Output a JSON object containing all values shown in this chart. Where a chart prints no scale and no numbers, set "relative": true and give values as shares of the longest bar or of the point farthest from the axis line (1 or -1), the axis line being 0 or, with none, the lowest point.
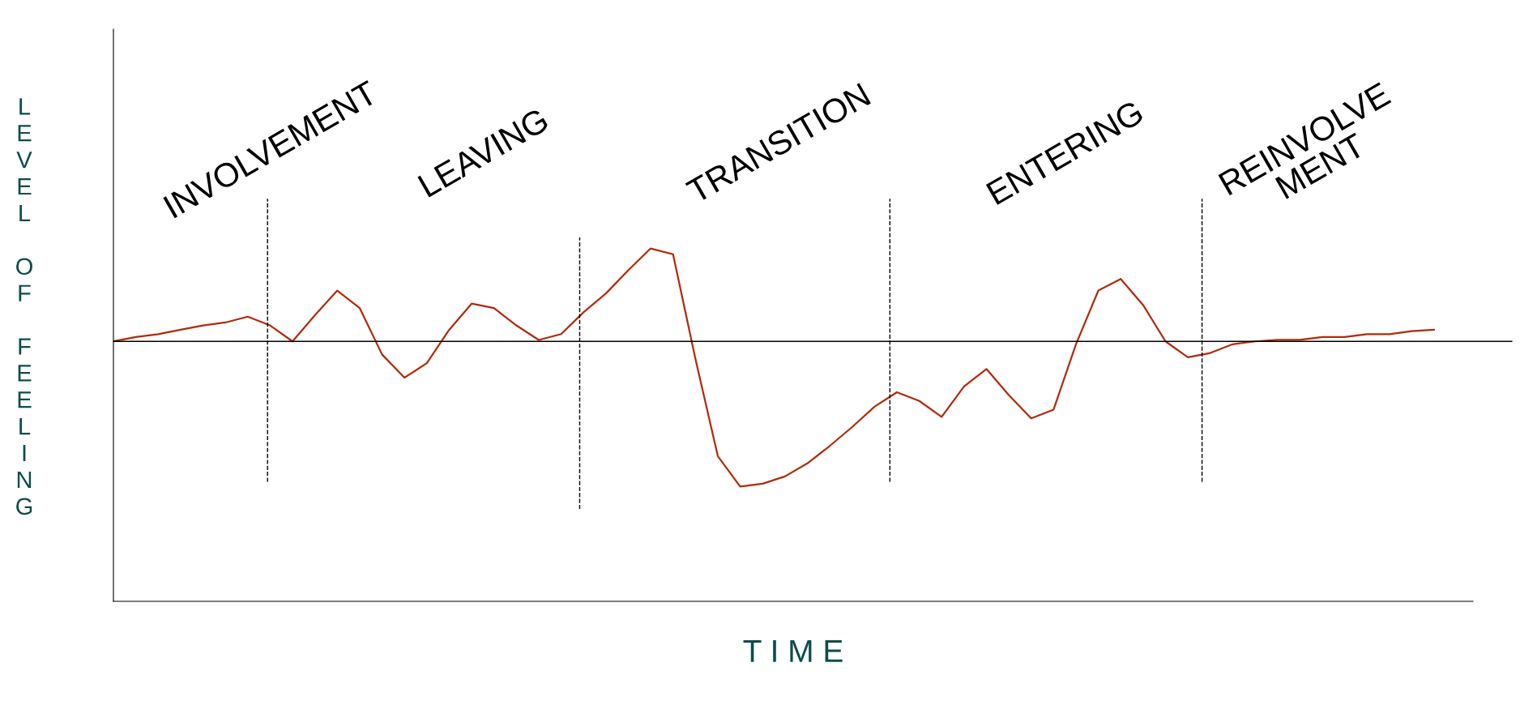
{
  "chart_data": {
    "type": "line",
    "relative": true,
    "xlabel": "T I M E",
    "ylabel": "LEVEL OF FEELING",
    "categories": [
      null,
      null,
      null,
      null,
      null,
      null,
      null,
      null,
      null,
      null,
      null,
      null,
      null,
      null,
      null,
      null,
      null,
      null,
      null,
      null,
      null,
      null,
      null,
      null,
      null,
      null,
      null,
      null,
      null,
      null,
      null,
      null,
      null,
      null,
      null,
      null,
      null,
      null,
      null,
      null,
      null,
      null,
      null,
      null,
      null,
      null,
      null,
      null,
      null,
      null,
      null,
      null,
      null,
      null,
      null,
      null,
      null,
      null,
      null,
      null
    ],
    "series": [
      {
        "color": "#b22a0a",
        "values": [
          0,
          0.03,
          0.05,
          0.08,
          0.11,
          0.13,
          0.17,
          0.11,
          0,
          0.18,
          0.35,
          0.23,
          -0.09,
          -0.25,
          -0.15,
          0.08,
          0.26,
          0.23,
          0.11,
          0.01,
          0.05,
          0.2,
          0.33,
          0.49,
          0.64,
          0.6,
          -0.12,
          -0.79,
          -1,
          -0.98,
          -0.93,
          -0.84,
          -0.72,
          -0.59,
          -0.45,
          -0.35,
          -0.41,
          -0.52,
          -0.31,
          -0.19,
          -0.37,
          -0.53,
          -0.47,
          -0.02,
          0.35,
          0.43,
          0.25,
          0,
          -0.11,
          -0.08,
          -0.02,
          0,
          0.01,
          0.01,
          0.03,
          0.03,
          0.05,
          0.05,
          0.07,
          0.08
        ]
      }
    ],
    "annotations": [
      "INVOLVEMENT",
      "LEAVING",
      "TRANSITION",
      "ENTERING",
      "REINVOLVE\nMENT"
    ],
    "grid": false,
    "legend": false,
    "marker": "none",
    "line_style": "solid"
  }
}
